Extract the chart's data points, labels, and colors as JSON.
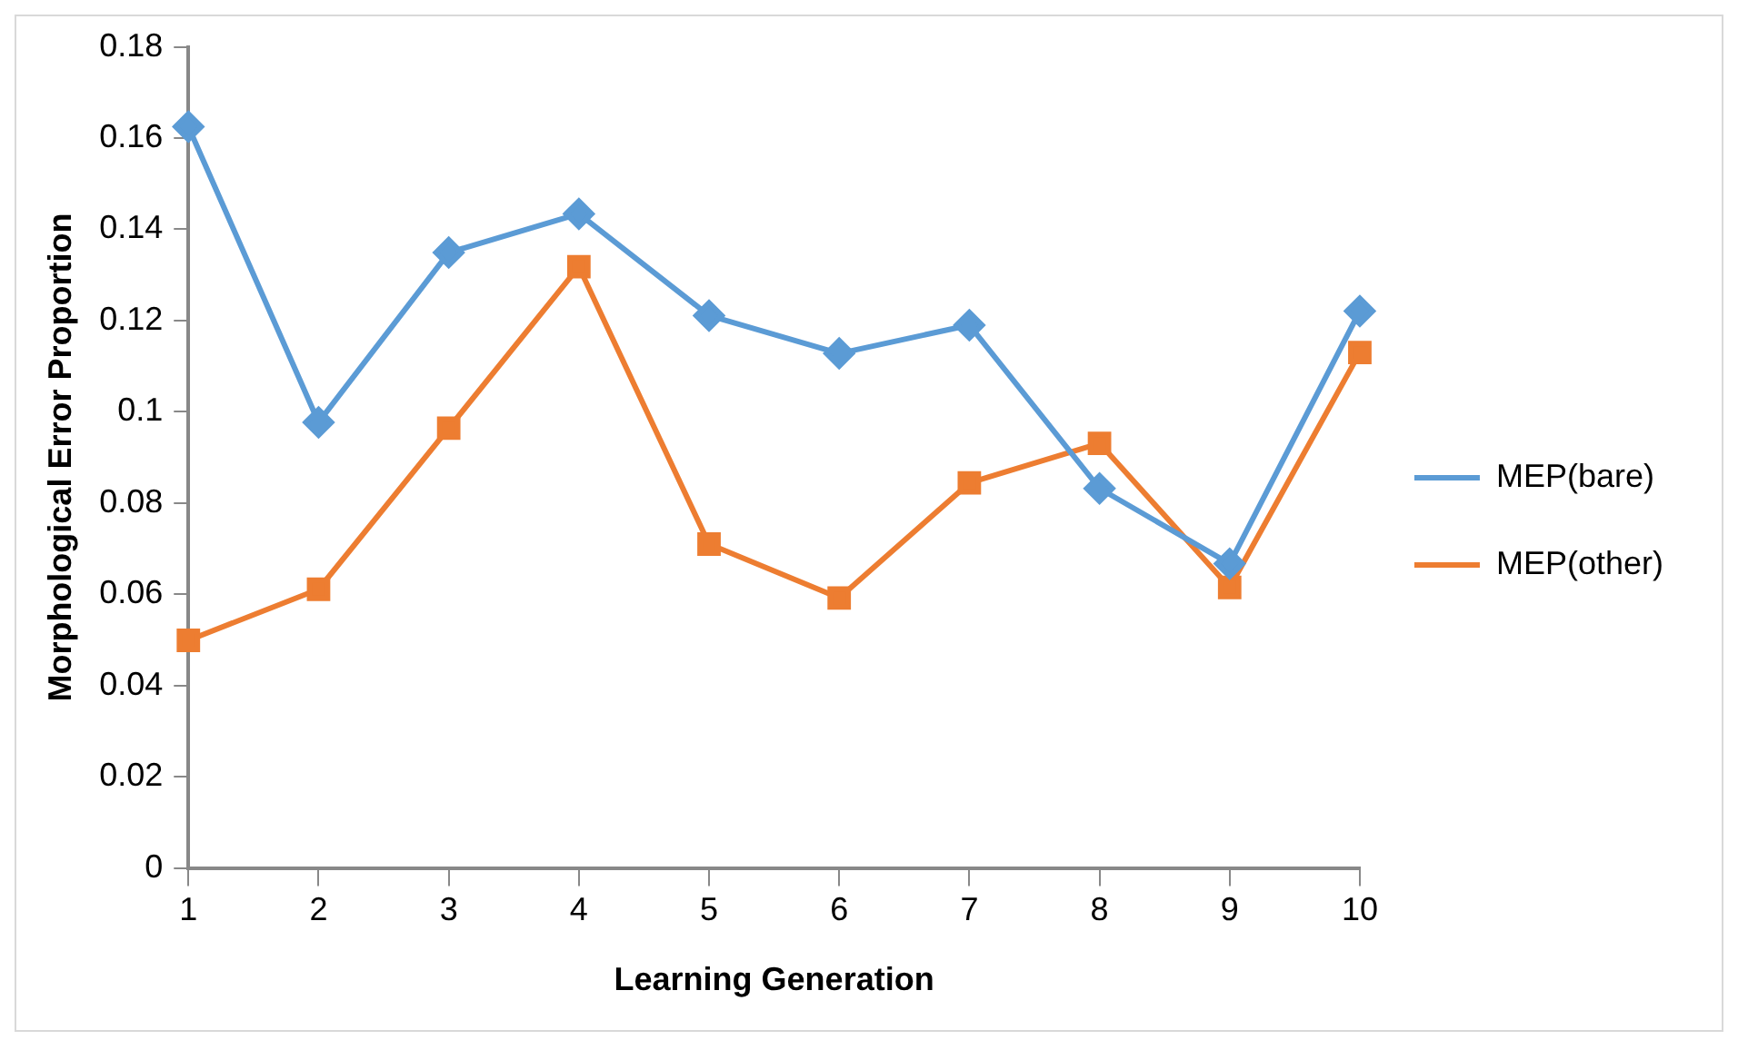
{
  "chart_data": {
    "type": "line",
    "xlabel": "Learning Generation",
    "ylabel": "Morphological Error Proportion",
    "categories": [
      "1",
      "2",
      "3",
      "4",
      "5",
      "6",
      "7",
      "8",
      "9",
      "10"
    ],
    "series": [
      {
        "name": "MEP(bare)",
        "color": "#5b9bd5",
        "marker": "diamond",
        "values": [
          0.1625,
          0.0977,
          0.1349,
          0.1434,
          0.1211,
          0.1128,
          0.119,
          0.0832,
          0.0667,
          0.1221
        ]
      },
      {
        "name": "MEP(other)",
        "color": "#ed7d31",
        "marker": "square",
        "values": [
          0.0499,
          0.0611,
          0.0964,
          0.1318,
          0.071,
          0.0592,
          0.0844,
          0.0931,
          0.0615,
          0.113
        ]
      }
    ],
    "ylim": [
      0,
      0.18
    ],
    "yticks": [
      0,
      0.02,
      0.04,
      0.06,
      0.08,
      0.1,
      0.12,
      0.14,
      0.16,
      0.18
    ],
    "grid": false,
    "legend": "right"
  }
}
